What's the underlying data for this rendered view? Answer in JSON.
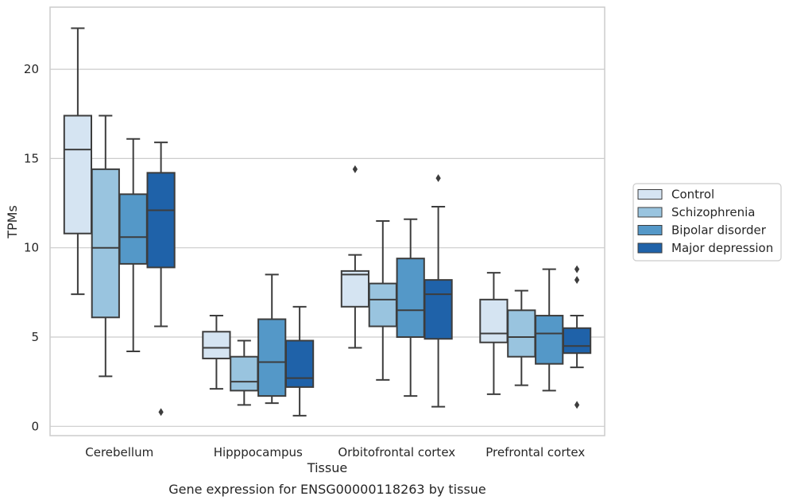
{
  "chart_data": {
    "type": "box",
    "xlabel": "Tissue",
    "ylabel": "TPMs",
    "caption": "Gene expression for ENSG00000118263 by tissue",
    "ylim": [
      -0.5,
      23.5
    ],
    "yticks": [
      0,
      5,
      10,
      15,
      20
    ],
    "grid": "y",
    "legend_position": "right",
    "categories": [
      "Cerebellum",
      "Hipppocampus",
      "Orbitofrontal cortex",
      "Prefrontal cortex"
    ],
    "series": [
      {
        "name": "Control",
        "color": "#d5e4f2",
        "boxes": [
          {
            "whislo": 7.4,
            "q1": 10.8,
            "med": 15.5,
            "q3": 17.4,
            "whishi": 22.3,
            "fliers": []
          },
          {
            "whislo": 2.1,
            "q1": 3.8,
            "med": 4.4,
            "q3": 5.3,
            "whishi": 6.2,
            "fliers": []
          },
          {
            "whislo": 4.4,
            "q1": 6.7,
            "med": 8.5,
            "q3": 8.7,
            "whishi": 9.6,
            "fliers": [
              14.4
            ]
          },
          {
            "whislo": 1.8,
            "q1": 4.7,
            "med": 5.2,
            "q3": 7.1,
            "whishi": 8.6,
            "fliers": []
          }
        ]
      },
      {
        "name": "Schizophrenia",
        "color": "#99c4df",
        "boxes": [
          {
            "whislo": 2.8,
            "q1": 6.1,
            "med": 10.0,
            "q3": 14.4,
            "whishi": 17.4,
            "fliers": []
          },
          {
            "whislo": 1.2,
            "q1": 2.0,
            "med": 2.5,
            "q3": 3.9,
            "whishi": 4.8,
            "fliers": []
          },
          {
            "whislo": 2.6,
            "q1": 5.6,
            "med": 7.1,
            "q3": 8.0,
            "whishi": 11.5,
            "fliers": []
          },
          {
            "whislo": 2.3,
            "q1": 3.9,
            "med": 5.0,
            "q3": 6.5,
            "whishi": 7.6,
            "fliers": []
          }
        ]
      },
      {
        "name": "Bipolar disorder",
        "color": "#5498c8",
        "boxes": [
          {
            "whislo": 4.2,
            "q1": 9.1,
            "med": 10.6,
            "q3": 13.0,
            "whishi": 16.1,
            "fliers": []
          },
          {
            "whislo": 1.3,
            "q1": 1.7,
            "med": 3.6,
            "q3": 6.0,
            "whishi": 8.5,
            "fliers": []
          },
          {
            "whislo": 1.7,
            "q1": 5.0,
            "med": 6.5,
            "q3": 9.4,
            "whishi": 11.6,
            "fliers": []
          },
          {
            "whislo": 2.0,
            "q1": 3.5,
            "med": 5.2,
            "q3": 6.2,
            "whishi": 8.8,
            "fliers": []
          }
        ]
      },
      {
        "name": "Major depression",
        "color": "#1f62a9",
        "boxes": [
          {
            "whislo": 5.6,
            "q1": 8.9,
            "med": 12.1,
            "q3": 14.2,
            "whishi": 15.9,
            "fliers": [
              0.8
            ]
          },
          {
            "whislo": 0.6,
            "q1": 2.2,
            "med": 2.7,
            "q3": 4.8,
            "whishi": 6.7,
            "fliers": []
          },
          {
            "whislo": 1.1,
            "q1": 4.9,
            "med": 7.4,
            "q3": 8.2,
            "whishi": 12.3,
            "fliers": [
              13.9
            ]
          },
          {
            "whislo": 3.3,
            "q1": 4.1,
            "med": 4.5,
            "q3": 5.5,
            "whishi": 6.2,
            "fliers": [
              8.8,
              8.2,
              1.2
            ]
          }
        ]
      }
    ]
  }
}
